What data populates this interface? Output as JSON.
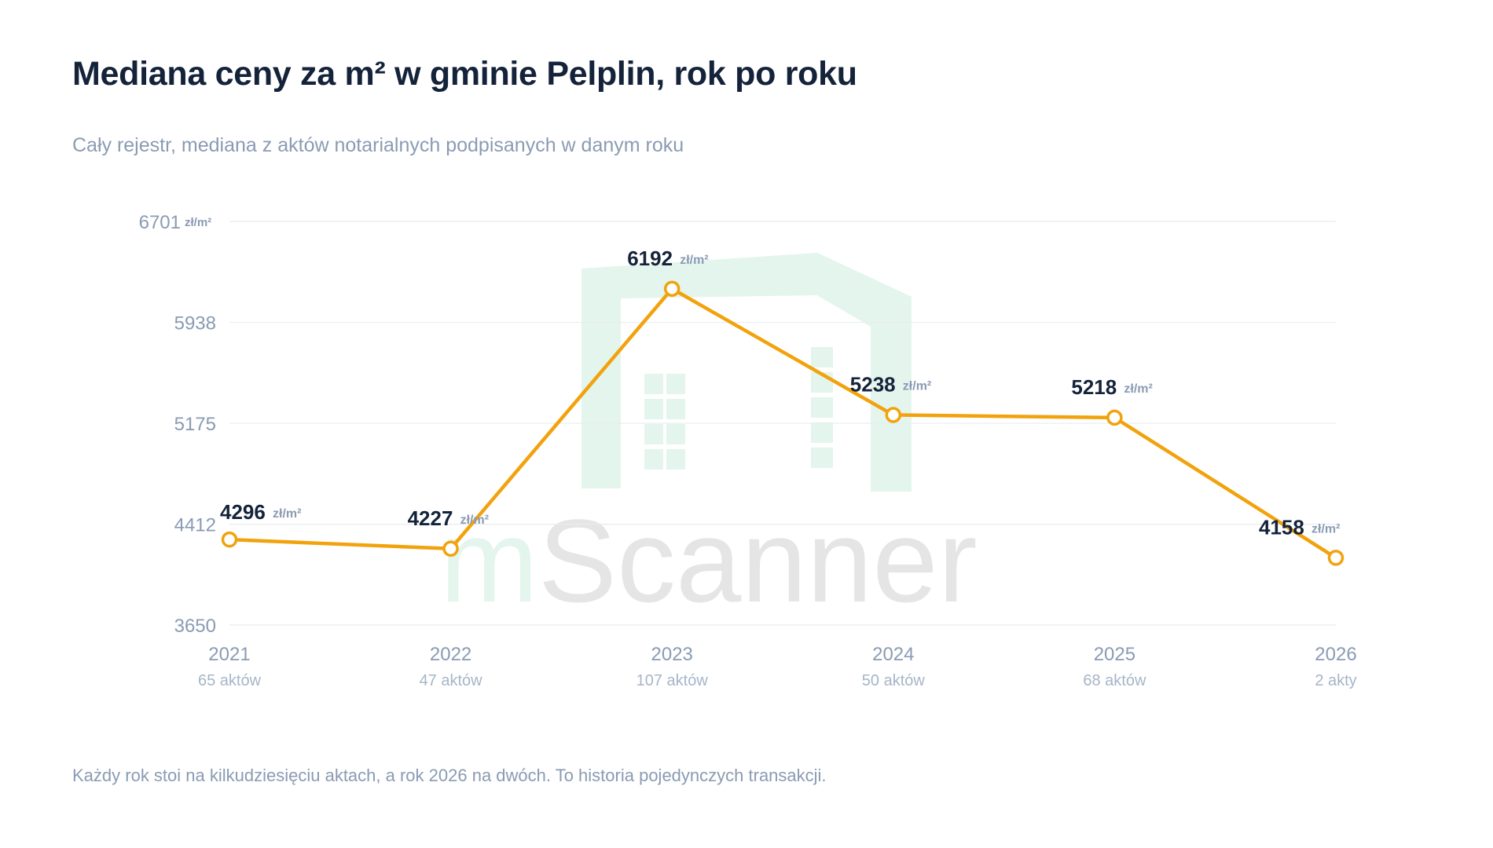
{
  "title": "Mediana ceny za m² w gminie Pelplin, rok po roku",
  "subtitle": "Cały rejestr, mediana z aktów notarialnych podpisanych w danym roku",
  "footnote": "Każdy rok stoi na kilkudziesięciu aktach, a rok 2026 na dwóch. To historia pojedynczych transakcji.",
  "watermark": "mScanner",
  "colors": {
    "line": "#f2a20c",
    "point_fill": "#ffffff",
    "grid": "#e8ecf1",
    "watermark_house": "#e3f5ec",
    "watermark_text": "#e5e5e5"
  },
  "chart_data": {
    "type": "line",
    "title": "Mediana ceny za m² w gminie Pelplin, rok po roku",
    "subtitle": "Cały rejestr, mediana z aktów notarialnych podpisanych w danym roku",
    "unit": "zł/m²",
    "categories": [
      "2021",
      "2022",
      "2023",
      "2024",
      "2025",
      "2026"
    ],
    "counts": [
      "65 aktów",
      "47 aktów",
      "107 aktów",
      "50 aktów",
      "68 aktów",
      "2 akty"
    ],
    "values": [
      4296,
      4227,
      6192,
      5238,
      5218,
      4158
    ],
    "yticks": [
      3650,
      4412,
      5175,
      5938,
      6701
    ],
    "ylim": [
      3650,
      6701
    ],
    "grid": true,
    "legend": "none"
  }
}
